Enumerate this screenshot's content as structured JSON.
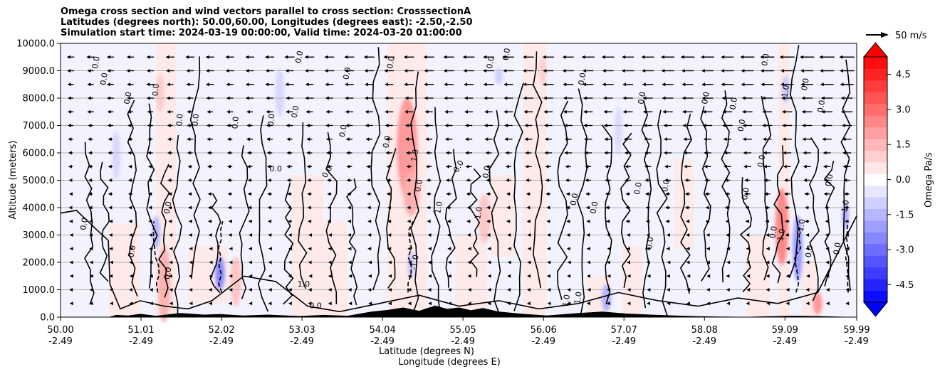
{
  "chart_data": {
    "type": "contour",
    "title_lines": [
      "Omega cross section and wind vectors parallel to cross section: CrosssectionA",
      "Latitudes (degrees north): 50.00,60.00, Longitudes (degrees east): -2.50,-2.50",
      "Simulation start time: 2024-03-19 00:00:00, Valid time: 2024-03-20 01:00:00"
    ],
    "ylabel": "Altitude (meters)",
    "xlabel_lat": "Latitude (degrees N)",
    "xlabel_lon": "Longitude (degrees E)",
    "ylim": [
      0,
      10000
    ],
    "yticks": [
      "0.0",
      "1000.0",
      "2000.0",
      "3000.0",
      "4000.0",
      "5000.0",
      "6000.0",
      "7000.0",
      "8000.0",
      "9000.0",
      "10000.0"
    ],
    "ytick_values": [
      0,
      1000,
      2000,
      3000,
      4000,
      5000,
      6000,
      7000,
      8000,
      9000,
      10000
    ],
    "xlim": [
      50.0,
      59.99
    ],
    "xtick_values": [
      50.0,
      51.01,
      52.02,
      53.03,
      54.04,
      55.05,
      56.06,
      57.07,
      58.08,
      59.09,
      59.99
    ],
    "xtick_lat": [
      "50.00",
      "51.01",
      "52.02",
      "53.03",
      "54.04",
      "55.05",
      "56.06",
      "57.07",
      "58.08",
      "59.09",
      "59.99"
    ],
    "xtick_lon": [
      "-2.49",
      "-2.49",
      "-2.49",
      "-2.49",
      "-2.49",
      "-2.49",
      "-2.49",
      "-2.49",
      "-2.49",
      "-2.49",
      "-2.49"
    ],
    "colorbar": {
      "label": "Omega Pa/s",
      "range": [
        -5.25,
        5.25
      ],
      "ticks": [
        "-4.5",
        "-3.0",
        "-1.5",
        "0.0",
        "1.5",
        "3.0",
        "4.5"
      ],
      "tick_values": [
        -4.5,
        -3.0,
        -1.5,
        0.0,
        1.5,
        3.0,
        4.5
      ],
      "extend": "both",
      "colormap": "bwr"
    },
    "quiver_key": {
      "label": "50 m/s",
      "value": 50
    },
    "contour_levels_labeled": [
      "0.0",
      "1.0",
      "-1.0"
    ],
    "contour_labels": [
      {
        "text": "0.0",
        "lat": 50.45,
        "alt": 9300,
        "rot": -80
      },
      {
        "text": "0.0",
        "lat": 50.55,
        "alt": 8700,
        "rot": -80
      },
      {
        "text": "0.0",
        "lat": 50.85,
        "alt": 8000,
        "rot": -80
      },
      {
        "text": "0.0",
        "lat": 51.2,
        "alt": 8300,
        "rot": -85
      },
      {
        "text": "0.0",
        "lat": 51.5,
        "alt": 7200,
        "rot": -85
      },
      {
        "text": "0.0",
        "lat": 51.7,
        "alt": 7200,
        "rot": -85
      },
      {
        "text": "0.0",
        "lat": 52.2,
        "alt": 7100,
        "rot": -85
      },
      {
        "text": "0.0",
        "lat": 52.65,
        "alt": 7200,
        "rot": -85
      },
      {
        "text": "0.0",
        "lat": 53.0,
        "alt": 9500,
        "rot": -80
      },
      {
        "text": "0.0",
        "lat": 52.95,
        "alt": 7500,
        "rot": -80
      },
      {
        "text": "0.0",
        "lat": 52.7,
        "alt": 5400,
        "rot": 0
      },
      {
        "text": "0.0",
        "lat": 53.6,
        "alt": 8900,
        "rot": -80
      },
      {
        "text": "0.0",
        "lat": 53.55,
        "alt": 6800,
        "rot": -80
      },
      {
        "text": "0.0",
        "lat": 53.35,
        "alt": 5300,
        "rot": -60
      },
      {
        "text": "0.0",
        "lat": 54.15,
        "alt": 9300,
        "rot": -80
      },
      {
        "text": "0.0",
        "lat": 54.1,
        "alt": 6400,
        "rot": -80
      },
      {
        "text": "1.0",
        "lat": 54.45,
        "alt": 5900,
        "rot": -80
      },
      {
        "text": "0.0",
        "lat": 54.5,
        "alt": 4800,
        "rot": -80
      },
      {
        "text": "0.0",
        "lat": 55.0,
        "alt": 5500,
        "rot": -60
      },
      {
        "text": "1.0",
        "lat": 54.75,
        "alt": 4000,
        "rot": -80
      },
      {
        "text": "1.0",
        "lat": 55.25,
        "alt": 3800,
        "rot": -80
      },
      {
        "text": "0.0",
        "lat": 55.4,
        "alt": 9300,
        "rot": -80
      },
      {
        "text": "0.0",
        "lat": 55.6,
        "alt": 9600,
        "rot": -80
      },
      {
        "text": "0.0",
        "lat": 55.35,
        "alt": 5300,
        "rot": -80
      },
      {
        "text": "0.0",
        "lat": 56.45,
        "alt": 4300,
        "rot": -80
      },
      {
        "text": "0.0",
        "lat": 56.55,
        "alt": 8700,
        "rot": -80
      },
      {
        "text": "0.0",
        "lat": 56.7,
        "alt": 4000,
        "rot": -80
      },
      {
        "text": "0.0",
        "lat": 57.25,
        "alt": 4700,
        "rot": -80
      },
      {
        "text": "0.0",
        "lat": 57.3,
        "alt": 8000,
        "rot": -80
      },
      {
        "text": "0.0",
        "lat": 57.6,
        "alt": 4800,
        "rot": -80
      },
      {
        "text": "0.0",
        "lat": 58.1,
        "alt": 8000,
        "rot": -80
      },
      {
        "text": "0.0",
        "lat": 58.45,
        "alt": 7800,
        "rot": -80
      },
      {
        "text": "0.0",
        "lat": 58.55,
        "alt": 7000,
        "rot": -80
      },
      {
        "text": "0.0",
        "lat": 58.6,
        "alt": 4500,
        "rot": -80
      },
      {
        "text": "0.0",
        "lat": 58.8,
        "alt": 5700,
        "rot": -80
      },
      {
        "text": "0.0",
        "lat": 58.85,
        "alt": 9400,
        "rot": -80
      },
      {
        "text": "0.0",
        "lat": 58.95,
        "alt": 3100,
        "rot": -80
      },
      {
        "text": "-1.0",
        "lat": 59.1,
        "alt": 8200,
        "rot": -80
      },
      {
        "text": "0.0",
        "lat": 59.35,
        "alt": 8500,
        "rot": -80
      },
      {
        "text": "0.0",
        "lat": 59.55,
        "alt": 7700,
        "rot": -80
      },
      {
        "text": "0.0",
        "lat": 59.65,
        "alt": 5000,
        "rot": -80
      },
      {
        "text": "-1.0",
        "lat": 59.85,
        "alt": 4000,
        "rot": -80
      },
      {
        "text": "-1.0",
        "lat": 59.3,
        "alt": 3300,
        "rot": -80
      },
      {
        "text": "1.0",
        "lat": 59.05,
        "alt": 3000,
        "rot": -80
      },
      {
        "text": "1.0",
        "lat": 53.05,
        "alt": 1200,
        "rot": 0
      },
      {
        "text": "0.0",
        "lat": 50.3,
        "alt": 3400,
        "rot": -80
      },
      {
        "text": "0.0",
        "lat": 50.9,
        "alt": 2400,
        "rot": -80
      },
      {
        "text": "0.0",
        "lat": 51.35,
        "alt": 1600,
        "rot": -80
      },
      {
        "text": "0.0",
        "lat": 51.35,
        "alt": 4000,
        "rot": -80
      },
      {
        "text": "-1.0",
        "lat": 54.45,
        "alt": 2000,
        "rot": -80
      },
      {
        "text": "1.0",
        "lat": 56.35,
        "alt": 600,
        "rot": -80
      },
      {
        "text": "1.0",
        "lat": 56.5,
        "alt": 700,
        "rot": -80
      },
      {
        "text": "0.0",
        "lat": 53.2,
        "alt": 400,
        "rot": 0
      },
      {
        "text": "0.0",
        "lat": 57.4,
        "alt": 2700,
        "rot": -80
      },
      {
        "text": "0.0",
        "lat": 59.4,
        "alt": 2400,
        "rot": -80
      },
      {
        "text": "0.0",
        "lat": 59.75,
        "alt": 2500,
        "rot": -80
      }
    ]
  }
}
